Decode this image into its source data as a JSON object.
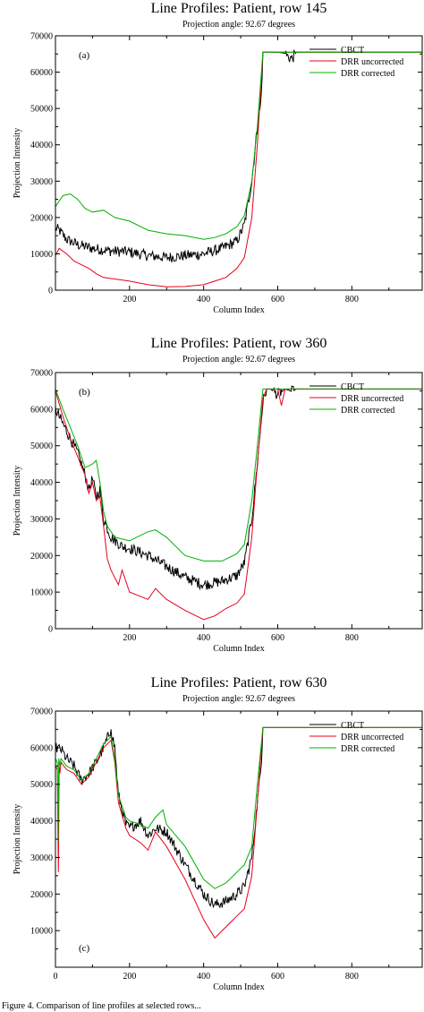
{
  "caption": "Figure 4.  Comparison of line profiles at selected rows...",
  "chart_data": [
    {
      "type": "line",
      "title": "Line Profiles: Patient, row 145",
      "subtitle": "Projection angle: 92.67 degrees",
      "panel": "(a)",
      "xlabel": "Column Index",
      "ylabel": "Projection Intensity",
      "xlim": [
        0,
        990
      ],
      "ylim": [
        0,
        70000
      ],
      "xticks": [
        200,
        400,
        600,
        800
      ],
      "yticks": [
        0,
        10000,
        20000,
        30000,
        40000,
        50000,
        60000,
        70000
      ],
      "legend": "top-right",
      "series": [
        {
          "name": "CBCT",
          "color": "#000000",
          "noise": 1500,
          "x": [
            0,
            10,
            30,
            60,
            100,
            150,
            200,
            250,
            300,
            350,
            400,
            450,
            490,
            510,
            530,
            545,
            555,
            560,
            565,
            580,
            600,
            620,
            630,
            640,
            650,
            660,
            990
          ],
          "y": [
            17000,
            16500,
            14000,
            12500,
            11500,
            10800,
            10500,
            9500,
            9000,
            9500,
            10000,
            11500,
            13500,
            18000,
            30000,
            45000,
            52000,
            65500,
            65500,
            65500,
            65500,
            65200,
            64000,
            63800,
            65500,
            65500,
            65500
          ]
        },
        {
          "name": "DRR uncorrected",
          "color": "#e8001c",
          "noise": 0,
          "x": [
            0,
            10,
            30,
            50,
            70,
            90,
            110,
            130,
            150,
            200,
            250,
            300,
            350,
            400,
            430,
            460,
            490,
            510,
            530,
            545,
            560,
            580,
            990
          ],
          "y": [
            9500,
            11500,
            10000,
            8000,
            7000,
            6000,
            4500,
            3500,
            3200,
            2500,
            1500,
            900,
            1000,
            1500,
            2500,
            3500,
            6000,
            9000,
            20000,
            40000,
            65500,
            65500,
            65500
          ]
        },
        {
          "name": "DRR corrected",
          "color": "#00b000",
          "noise": 0,
          "x": [
            0,
            20,
            40,
            60,
            80,
            100,
            130,
            160,
            200,
            250,
            300,
            350,
            400,
            430,
            460,
            490,
            510,
            530,
            545,
            560,
            580,
            990
          ],
          "y": [
            23000,
            26000,
            26500,
            25000,
            22500,
            21500,
            22000,
            20000,
            19000,
            16500,
            15500,
            15000,
            14000,
            14500,
            15500,
            17500,
            20500,
            30000,
            45000,
            65500,
            65500,
            65500
          ]
        }
      ]
    },
    {
      "type": "line",
      "title": "Line Profiles: Patient, row 360",
      "subtitle": "Projection angle: 92.67 degrees",
      "panel": "(b)",
      "xlabel": "Column Index",
      "ylabel": "Projection Intensity",
      "xlim": [
        0,
        990
      ],
      "ylim": [
        0,
        70000
      ],
      "xticks": [
        200,
        400,
        600,
        800
      ],
      "yticks": [
        0,
        10000,
        20000,
        30000,
        40000,
        50000,
        60000,
        70000
      ],
      "legend": "top-right",
      "series": [
        {
          "name": "CBCT",
          "color": "#000000",
          "noise": 1500,
          "x": [
            0,
            20,
            40,
            60,
            80,
            90,
            100,
            110,
            120,
            130,
            150,
            180,
            200,
            250,
            300,
            350,
            400,
            450,
            490,
            510,
            530,
            545,
            560,
            570,
            580,
            600,
            620,
            640,
            650,
            990
          ],
          "y": [
            60000,
            56000,
            52000,
            48000,
            42000,
            38000,
            41000,
            36000,
            38000,
            30000,
            25000,
            22500,
            22000,
            20000,
            17000,
            14000,
            12000,
            13000,
            14500,
            18000,
            30000,
            45000,
            62000,
            65500,
            65500,
            64000,
            65500,
            64800,
            65500,
            65500
          ]
        },
        {
          "name": "DRR uncorrected",
          "color": "#e8001c",
          "noise": 0,
          "x": [
            0,
            20,
            40,
            60,
            80,
            90,
            100,
            110,
            120,
            130,
            140,
            150,
            170,
            180,
            200,
            250,
            270,
            300,
            350,
            400,
            430,
            460,
            490,
            510,
            530,
            545,
            560,
            570,
            580,
            600,
            610,
            620,
            990
          ],
          "y": [
            65000,
            58000,
            52000,
            47000,
            42000,
            37000,
            40000,
            35000,
            36000,
            28000,
            19000,
            16000,
            12000,
            16000,
            10000,
            8000,
            11000,
            8000,
            5000,
            2500,
            3500,
            5500,
            7000,
            9500,
            25000,
            45000,
            63000,
            65500,
            65500,
            65500,
            61000,
            65500,
            65500
          ]
        },
        {
          "name": "DRR corrected",
          "color": "#00b000",
          "noise": 0,
          "x": [
            0,
            20,
            40,
            60,
            80,
            100,
            110,
            120,
            130,
            140,
            160,
            200,
            250,
            270,
            300,
            350,
            400,
            450,
            490,
            510,
            530,
            545,
            560,
            570,
            580,
            990
          ],
          "y": [
            65500,
            60000,
            55000,
            50000,
            44000,
            45000,
            46000,
            40000,
            32000,
            28000,
            25000,
            24000,
            26500,
            27000,
            25000,
            20000,
            18500,
            18500,
            20500,
            23000,
            35000,
            50000,
            65500,
            65500,
            65500,
            65500
          ]
        }
      ]
    },
    {
      "type": "line",
      "title": "Line Profiles: Patient, row 630",
      "subtitle": "Projection angle: 92.67 degrees",
      "panel": "(c)",
      "xlabel": "Column Index",
      "ylabel": "Projection Intensity",
      "xlim": [
        0,
        990
      ],
      "ylim": [
        0,
        70000
      ],
      "xticks": [
        0,
        200,
        400,
        600,
        800
      ],
      "yticks": [
        10000,
        20000,
        30000,
        40000,
        50000,
        60000,
        70000
      ],
      "legend": "top-right",
      "series": [
        {
          "name": "CBCT",
          "color": "#000000",
          "noise": 1500,
          "x": [
            0,
            15,
            30,
            50,
            70,
            90,
            110,
            130,
            150,
            160,
            170,
            190,
            200,
            230,
            250,
            270,
            300,
            350,
            400,
            430,
            460,
            490,
            510,
            530,
            545,
            555,
            560,
            570,
            990
          ],
          "y": [
            60000,
            59500,
            57000,
            55000,
            51000,
            53000,
            56000,
            60000,
            65000,
            60000,
            47000,
            39000,
            38000,
            40000,
            36000,
            38000,
            37000,
            28000,
            20000,
            17000,
            18000,
            20000,
            22000,
            30000,
            45000,
            55000,
            65500,
            65500,
            65500
          ]
        },
        {
          "name": "DRR uncorrected",
          "color": "#e8001c",
          "noise": 0,
          "x": [
            0,
            5,
            8,
            10,
            12,
            15,
            30,
            50,
            70,
            90,
            110,
            130,
            150,
            160,
            170,
            190,
            200,
            230,
            250,
            270,
            300,
            350,
            400,
            430,
            460,
            490,
            510,
            530,
            545,
            560,
            570,
            990
          ],
          "y": [
            55000,
            54000,
            26000,
            55000,
            53000,
            56000,
            54000,
            53000,
            50000,
            52000,
            56000,
            60000,
            62000,
            56000,
            45000,
            38000,
            36000,
            34000,
            32000,
            37000,
            33000,
            24000,
            13000,
            8000,
            11000,
            14000,
            16000,
            25000,
            45000,
            65500,
            65500,
            65500
          ]
        },
        {
          "name": "DRR corrected",
          "color": "#00b000",
          "noise": 0,
          "x": [
            0,
            5,
            7,
            9,
            12,
            15,
            30,
            50,
            70,
            90,
            110,
            130,
            150,
            160,
            170,
            190,
            200,
            230,
            250,
            270,
            290,
            300,
            350,
            400,
            430,
            460,
            490,
            510,
            530,
            545,
            560,
            570,
            990
          ],
          "y": [
            57000,
            56000,
            34000,
            57000,
            55000,
            57000,
            55000,
            54000,
            51000,
            53000,
            57000,
            61000,
            63000,
            57000,
            47000,
            41000,
            40000,
            39000,
            38000,
            41000,
            43000,
            39000,
            33000,
            24000,
            21500,
            23000,
            26000,
            28000,
            33000,
            50000,
            65500,
            65500,
            65500
          ]
        }
      ]
    }
  ]
}
